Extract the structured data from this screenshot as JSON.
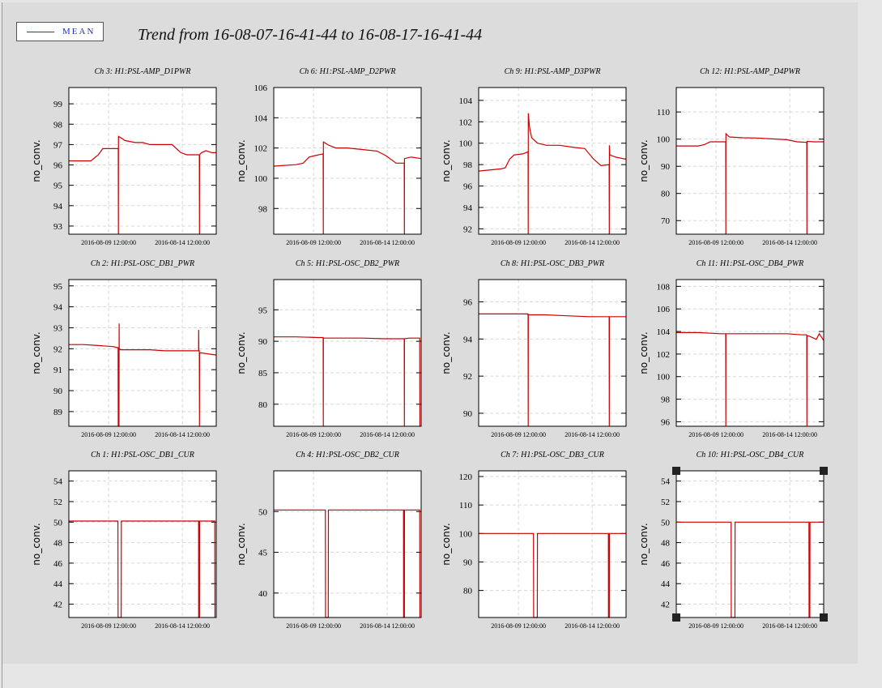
{
  "legend": {
    "label": "MEAN",
    "color": "#cc0000"
  },
  "page_title": "Trend from 16-08-07-16-41-44 to 16-08-17-16-41-44",
  "colors": {
    "series": "#cc0000",
    "grid": "#d8d8d8",
    "frame": "#000000",
    "background": "#dcdcdc"
  },
  "chart_data": [
    {
      "type": "line",
      "title": "Ch 3: H1:PSL-AMP_D1PWR",
      "ylabel": "no_conv.",
      "xlabel": "",
      "x_ticks": [
        "2016-08-09 12:00:00",
        "2016-08-14 12:00:00"
      ],
      "y_ticks": [
        93,
        94,
        95,
        96,
        97,
        98,
        99
      ],
      "ylim": [
        92.6,
        99.8
      ],
      "xlim": [
        0,
        10
      ],
      "grid": true,
      "series": [
        {
          "name": "MEAN",
          "x": [
            0,
            0.6,
            1.5,
            2.0,
            2.3,
            2.6,
            3.1,
            3.35,
            3.36,
            3.37,
            3.6,
            3.8,
            4.5,
            5.0,
            5.5,
            6.0,
            6.5,
            7.0,
            7.6,
            8.0,
            8.4,
            8.85,
            8.86,
            8.87,
            9.0,
            9.3,
            9.7,
            10
          ],
          "y": [
            96.2,
            96.2,
            96.2,
            96.5,
            96.8,
            96.8,
            96.8,
            96.8,
            92.6,
            97.4,
            97.3,
            97.2,
            97.1,
            97.1,
            97.0,
            97.0,
            97.0,
            97.0,
            96.6,
            96.5,
            96.5,
            96.5,
            92.6,
            96.5,
            96.6,
            96.7,
            96.6,
            96.6
          ]
        }
      ]
    },
    {
      "type": "line",
      "title": "Ch 6: H1:PSL-AMP_D2PWR",
      "ylabel": "no_conv.",
      "xlabel": "",
      "x_ticks": [
        "2016-08-09 12:00:00",
        "2016-08-14 12:00:00"
      ],
      "y_ticks": [
        98,
        100,
        102,
        104,
        106
      ],
      "ylim": [
        96.3,
        106.0
      ],
      "xlim": [
        0,
        10
      ],
      "grid": true,
      "series": [
        {
          "name": "MEAN",
          "x": [
            0,
            1.5,
            2.0,
            2.4,
            2.8,
            3.3,
            3.35,
            3.36,
            3.37,
            3.7,
            4.2,
            5.0,
            6.0,
            7.0,
            7.6,
            8.3,
            8.85,
            8.86,
            8.87,
            9.3,
            10
          ],
          "y": [
            100.8,
            100.9,
            101.0,
            101.4,
            101.5,
            101.6,
            101.6,
            96.3,
            102.4,
            102.2,
            102.0,
            102.0,
            101.9,
            101.8,
            101.5,
            101.0,
            101.0,
            96.3,
            101.3,
            101.4,
            101.3
          ]
        }
      ]
    },
    {
      "type": "line",
      "title": "Ch 9: H1:PSL-AMP_D3PWR",
      "ylabel": "no_conv.",
      "xlabel": "",
      "x_ticks": [
        "2016-08-09 12:00:00",
        "2016-08-14 12:00:00"
      ],
      "y_ticks": [
        92,
        94,
        96,
        98,
        100,
        102,
        104
      ],
      "ylim": [
        91.5,
        105.2
      ],
      "xlim": [
        0,
        10
      ],
      "grid": true,
      "series": [
        {
          "name": "MEAN",
          "x": [
            0,
            1.5,
            1.8,
            2.1,
            2.4,
            3.0,
            3.35,
            3.36,
            3.37,
            3.45,
            3.6,
            4.0,
            4.6,
            5.5,
            6.5,
            7.2,
            7.8,
            8.3,
            8.85,
            8.86,
            8.87,
            8.9,
            9.3,
            10
          ],
          "y": [
            97.4,
            97.6,
            97.7,
            98.5,
            98.9,
            99.0,
            99.2,
            91.5,
            102.8,
            101.5,
            100.5,
            100.0,
            99.8,
            99.8,
            99.6,
            99.5,
            98.5,
            97.9,
            98.0,
            91.5,
            99.8,
            98.9,
            98.7,
            98.5
          ]
        }
      ]
    },
    {
      "type": "line",
      "title": "Ch 12: H1:PSL-AMP_D4PWR",
      "ylabel": "no_conv.",
      "xlabel": "",
      "x_ticks": [
        "2016-08-09 12:00:00",
        "2016-08-14 12:00:00"
      ],
      "y_ticks": [
        70,
        80,
        90,
        100,
        110
      ],
      "ylim": [
        65,
        119
      ],
      "xlim": [
        0,
        10
      ],
      "grid": true,
      "series": [
        {
          "name": "MEAN",
          "x": [
            0,
            1.5,
            1.9,
            2.3,
            3.1,
            3.35,
            3.36,
            3.37,
            3.6,
            4.5,
            5.5,
            6.5,
            7.5,
            8.2,
            8.85,
            8.86,
            8.87,
            9.3,
            10
          ],
          "y": [
            97.5,
            97.5,
            98.0,
            99.0,
            99.0,
            99.0,
            65,
            102.0,
            100.8,
            100.5,
            100.4,
            100.1,
            99.8,
            99.0,
            98.8,
            65,
            99.2,
            99.0,
            99.0
          ]
        }
      ]
    },
    {
      "type": "line",
      "title": "Ch 2: H1:PSL-OSC_DB1_PWR",
      "ylabel": "no_conv.",
      "xlabel": "",
      "x_ticks": [
        "2016-08-09 12:00:00",
        "2016-08-14 12:00:00"
      ],
      "y_ticks": [
        89,
        90,
        91,
        92,
        93,
        94,
        95
      ],
      "ylim": [
        88.3,
        95.3
      ],
      "xlim": [
        0,
        10
      ],
      "grid": true,
      "series": [
        {
          "name": "MEAN",
          "x": [
            0,
            1.0,
            2.0,
            3.0,
            3.3,
            3.34,
            3.35,
            3.4,
            3.41,
            3.42,
            3.5,
            4.5,
            5.5,
            6.5,
            7.5,
            8.5,
            8.8,
            8.81,
            8.82,
            8.85,
            8.86,
            8.87,
            9.0,
            10
          ],
          "y": [
            92.2,
            92.2,
            92.15,
            92.1,
            92.05,
            92.05,
            88.3,
            88.3,
            93.2,
            92.0,
            91.95,
            91.95,
            91.95,
            91.9,
            91.9,
            91.9,
            91.9,
            92.9,
            91.9,
            91.9,
            88.3,
            91.8,
            91.8,
            91.7
          ]
        }
      ]
    },
    {
      "type": "line",
      "title": "Ch 5: H1:PSL-OSC_DB2_PWR",
      "ylabel": "no_conv.",
      "xlabel": "",
      "x_ticks": [
        "2016-08-09 12:00:00",
        "2016-08-14 12:00:00"
      ],
      "y_ticks": [
        80,
        85,
        90,
        95
      ],
      "ylim": [
        76.5,
        99.8
      ],
      "xlim": [
        0,
        10
      ],
      "grid": true,
      "series": [
        {
          "name": "MEAN",
          "x": [
            0,
            1.5,
            3.0,
            3.35,
            3.36,
            3.37,
            4.5,
            6.0,
            7.5,
            8.8,
            8.85,
            8.86,
            8.87,
            9.2,
            9.9,
            9.91
          ],
          "y": [
            90.7,
            90.7,
            90.6,
            90.6,
            76.5,
            90.5,
            90.5,
            90.5,
            90.4,
            90.4,
            90.4,
            76.5,
            90.4,
            90.5,
            90.5,
            76.5
          ]
        }
      ]
    },
    {
      "type": "line",
      "title": "Ch 8: H1:PSL-OSC_DB3_PWR",
      "ylabel": "no_conv.",
      "xlabel": "",
      "x_ticks": [
        "2016-08-09 12:00:00",
        "2016-08-14 12:00:00"
      ],
      "y_ticks": [
        90,
        92,
        94,
        96
      ],
      "ylim": [
        89.3,
        97.2
      ],
      "xlim": [
        0,
        10
      ],
      "grid": true,
      "series": [
        {
          "name": "MEAN",
          "x": [
            0,
            1.5,
            3.0,
            3.35,
            3.36,
            3.37,
            4.5,
            6.0,
            7.5,
            8.8,
            8.85,
            8.86,
            8.87,
            9.3,
            10
          ],
          "y": [
            95.35,
            95.35,
            95.35,
            95.35,
            89.3,
            95.3,
            95.3,
            95.25,
            95.2,
            95.2,
            95.2,
            89.3,
            95.2,
            95.2,
            95.2
          ]
        }
      ]
    },
    {
      "type": "line",
      "title": "Ch 11: H1:PSL-OSC_DB4_PWR",
      "ylabel": "no_conv.",
      "xlabel": "",
      "x_ticks": [
        "2016-08-09 12:00:00",
        "2016-08-14 12:00:00"
      ],
      "y_ticks": [
        96,
        98,
        100,
        102,
        104,
        106,
        108
      ],
      "ylim": [
        95.6,
        108.6
      ],
      "xlim": [
        0,
        10
      ],
      "grid": true,
      "series": [
        {
          "name": "MEAN",
          "x": [
            0,
            1.5,
            3.0,
            3.35,
            3.36,
            3.37,
            4.5,
            6.0,
            7.5,
            8.5,
            8.85,
            8.86,
            8.87,
            9.0,
            9.5,
            9.7,
            10
          ],
          "y": [
            103.9,
            103.9,
            103.8,
            103.8,
            95.6,
            103.8,
            103.8,
            103.8,
            103.8,
            103.7,
            103.7,
            95.6,
            103.6,
            103.6,
            103.3,
            103.8,
            103.2
          ]
        }
      ]
    },
    {
      "type": "line",
      "title": "Ch 1: H1:PSL-OSC_DB1_CUR",
      "ylabel": "no_conv.",
      "xlabel": "",
      "x_ticks": [
        "2016-08-09 12:00:00",
        "2016-08-14 12:00:00"
      ],
      "y_ticks": [
        42,
        44,
        46,
        48,
        50,
        52,
        54
      ],
      "ylim": [
        40.7,
        55.0
      ],
      "xlim": [
        0,
        10
      ],
      "grid": true,
      "series": [
        {
          "name": "MEAN",
          "x": [
            0,
            3.33,
            3.34,
            3.55,
            3.56,
            8.8,
            8.81,
            8.86,
            8.87,
            9.9,
            9.91
          ],
          "y": [
            50.1,
            50.1,
            40.7,
            40.7,
            50.1,
            50.1,
            40.7,
            40.7,
            50.1,
            50.1,
            40.7
          ]
        }
      ]
    },
    {
      "type": "line",
      "title": "Ch 4: H1:PSL-OSC_DB2_CUR",
      "ylabel": "no_conv.",
      "xlabel": "",
      "x_ticks": [
        "2016-08-09 12:00:00",
        "2016-08-14 12:00:00"
      ],
      "y_ticks": [
        40,
        45,
        50
      ],
      "ylim": [
        37.0,
        55.0
      ],
      "xlim": [
        0,
        10
      ],
      "grid": true,
      "series": [
        {
          "name": "MEAN",
          "x": [
            0,
            3.5,
            3.51,
            3.7,
            3.71,
            8.8,
            8.81,
            8.86,
            8.87,
            9.9,
            9.91
          ],
          "y": [
            50.2,
            50.2,
            37.0,
            37.0,
            50.2,
            50.2,
            37.0,
            37.0,
            50.2,
            50.2,
            37.0
          ]
        }
      ]
    },
    {
      "type": "line",
      "title": "Ch 7: H1:PSL-OSC_DB3_CUR",
      "ylabel": "no_conv.",
      "xlabel": "",
      "x_ticks": [
        "2016-08-09 12:00:00",
        "2016-08-14 12:00:00"
      ],
      "y_ticks": [
        80,
        90,
        100,
        110,
        120
      ],
      "ylim": [
        70.5,
        122.0
      ],
      "xlim": [
        0,
        10
      ],
      "grid": true,
      "series": [
        {
          "name": "MEAN",
          "x": [
            0,
            3.72,
            3.73,
            3.98,
            3.99,
            8.8,
            8.81,
            8.86,
            8.87,
            10
          ],
          "y": [
            100.0,
            100.0,
            70.5,
            70.5,
            100.0,
            100.0,
            70.5,
            70.5,
            100.0,
            100.0
          ]
        }
      ]
    },
    {
      "type": "line",
      "title": "Ch 10: H1:PSL-OSC_DB4_CUR",
      "ylabel": "no_conv.",
      "xlabel": "",
      "x_ticks": [
        "2016-08-09 12:00:00",
        "2016-08-14 12:00:00"
      ],
      "y_ticks": [
        42,
        44,
        46,
        48,
        50,
        52,
        54
      ],
      "ylim": [
        40.7,
        55.0
      ],
      "xlim": [
        0,
        10
      ],
      "grid": true,
      "selected": true,
      "series": [
        {
          "name": "MEAN",
          "x": [
            0,
            3.72,
            3.73,
            3.98,
            3.99,
            9.0,
            9.01,
            9.06,
            9.07,
            10
          ],
          "y": [
            50.0,
            50.0,
            40.7,
            40.7,
            50.0,
            50.0,
            40.7,
            40.7,
            50.0,
            50.0
          ]
        }
      ]
    }
  ]
}
